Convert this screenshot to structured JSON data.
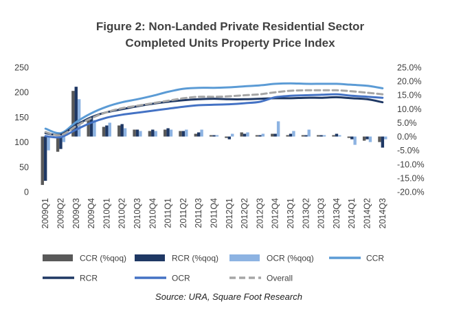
{
  "chart_data": {
    "type": "bar",
    "title_lines": [
      "Figure 2: Non-Landed Private Residential Sector",
      "Completed Units Property Price Index"
    ],
    "source": "Source: URA, Square Foot Research",
    "categories": [
      "2009Q1",
      "2009Q2",
      "2009Q3",
      "2009Q4",
      "2010Q1",
      "2010Q2",
      "2010Q3",
      "2010Q4",
      "2011Q1",
      "2011Q2",
      "2011Q3",
      "2011Q4",
      "2012Q1",
      "2012Q2",
      "2012Q3",
      "2012Q4",
      "2013Q1",
      "2013Q2",
      "2013Q3",
      "2013Q4",
      "2014Q1",
      "2014Q2",
      "2014Q3"
    ],
    "y_left": {
      "min": 0,
      "max": 250,
      "ticks": [
        "0",
        "50",
        "100",
        "150",
        "200",
        "250"
      ]
    },
    "y_right": {
      "min": -20,
      "max": 25,
      "ticks": [
        "-20.0%",
        "-15.0%",
        "-10.0%",
        "-5.0%",
        "0.0%",
        "5.0%",
        "10.0%",
        "15.0%",
        "20.0%",
        "25.0%"
      ]
    },
    "bar_series": [
      {
        "name": "CCR (%qoq)",
        "color": "#595959",
        "axis": "right",
        "values": [
          -17.5,
          -5.5,
          16.5,
          6.0,
          3.5,
          4.0,
          2.5,
          2.0,
          2.5,
          2.0,
          1.0,
          0.5,
          -0.5,
          1.5,
          0.5,
          1.0,
          0.5,
          0.5,
          0.5,
          0.5,
          -0.5,
          -1.5,
          -2.0
        ]
      },
      {
        "name": "RCR (%qoq)",
        "color": "#1f3864",
        "axis": "right",
        "values": [
          -16.0,
          -4.5,
          18.0,
          7.0,
          4.0,
          4.5,
          2.5,
          2.5,
          3.0,
          2.0,
          1.5,
          0.5,
          -1.0,
          1.0,
          0.5,
          1.0,
          1.0,
          0.5,
          0.5,
          1.0,
          -1.0,
          -1.0,
          -4.0
        ]
      },
      {
        "name": "OCR (%qoq)",
        "color": "#8db3e2",
        "axis": "right",
        "values": [
          -5.0,
          -2.0,
          13.5,
          6.0,
          5.0,
          3.0,
          2.0,
          2.0,
          2.5,
          2.5,
          2.5,
          0.5,
          1.0,
          1.5,
          1.0,
          5.5,
          2.0,
          2.5,
          0.5,
          0.5,
          -3.0,
          -2.0,
          -1.0
        ]
      }
    ],
    "line_series": [
      {
        "name": "CCR",
        "color": "#5b9bd5",
        "dash": false,
        "axis": "left",
        "values": [
          127,
          118,
          140,
          158,
          171,
          180,
          186,
          193,
          201,
          207,
          209,
          209,
          210,
          212,
          214,
          217,
          218,
          217,
          217,
          217,
          215,
          213,
          208
        ]
      },
      {
        "name": "RCR",
        "color": "#1f3864",
        "dash": false,
        "axis": "left",
        "values": [
          118,
          115,
          134,
          150,
          160,
          166,
          172,
          177,
          181,
          184,
          186,
          187,
          186,
          186,
          187,
          188,
          188,
          189,
          189,
          190,
          188,
          186,
          180
        ]
      },
      {
        "name": "OCR",
        "color": "#4472c4",
        "dash": false,
        "axis": "left",
        "values": [
          112,
          110,
          125,
          139,
          149,
          155,
          159,
          163,
          167,
          171,
          174,
          175,
          176,
          178,
          181,
          190,
          193,
          194,
          195,
          196,
          193,
          191,
          189
        ]
      },
      {
        "name": "Overall",
        "color": "#a6a6a6",
        "dash": true,
        "axis": "left",
        "values": [
          120,
          114,
          132,
          148,
          160,
          168,
          173,
          178,
          183,
          188,
          191,
          191,
          192,
          194,
          196,
          200,
          203,
          204,
          204,
          204,
          202,
          199,
          196
        ]
      }
    ],
    "legend_rows": [
      [
        "CCR (%qoq)",
        "RCR (%qoq)",
        "OCR (%qoq)",
        "CCR"
      ],
      [
        "RCR",
        "OCR",
        "Overall"
      ]
    ],
    "grid": false,
    "legend_placement": "bottom"
  }
}
